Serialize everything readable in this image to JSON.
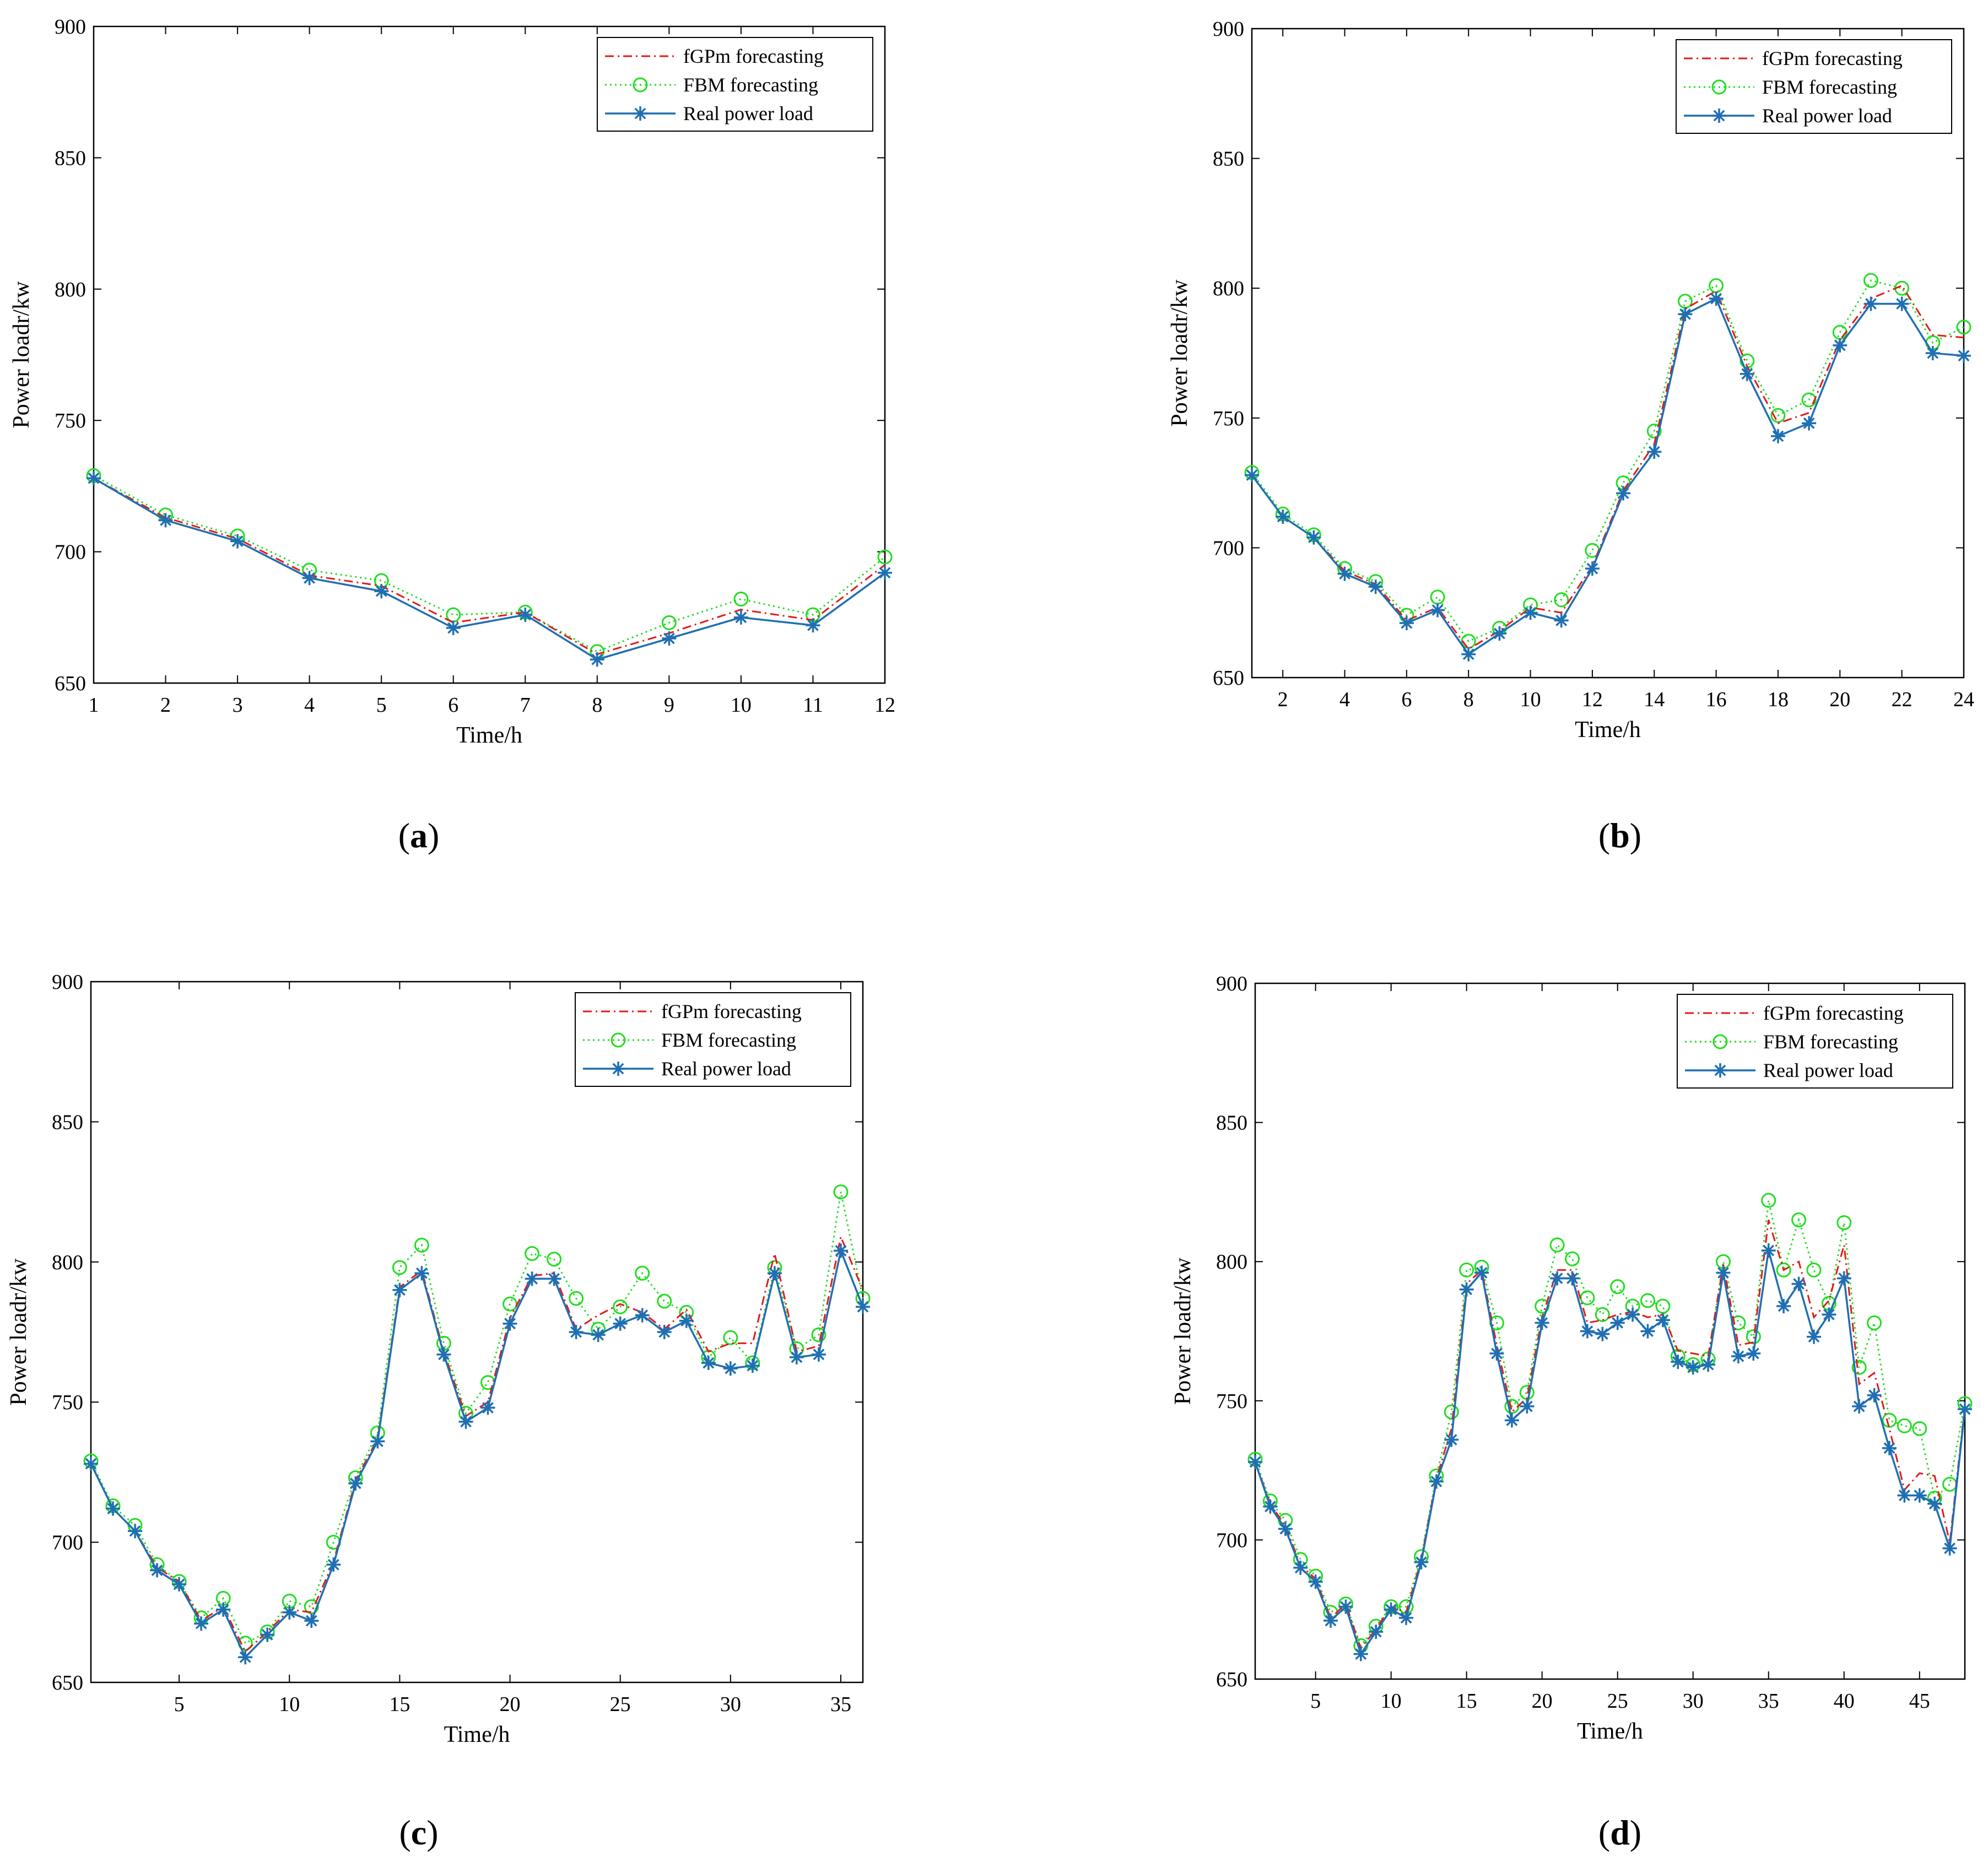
{
  "series_styles": {
    "fgpm": {
      "color": "#e31a1c",
      "marker": "none",
      "dash": "dash-dot"
    },
    "fbm": {
      "color": "#22dd22",
      "marker": "circle",
      "dash": "dotted"
    },
    "real": {
      "color": "#1f6fb2",
      "marker": "star",
      "dash": "solid"
    }
  },
  "chart_data": [
    {
      "panel_label": "a",
      "type": "line",
      "xlabel": "Time/h",
      "ylabel": "Power loadr/kw",
      "xlim": [
        1,
        12
      ],
      "ylim": [
        650,
        900
      ],
      "xticks": [
        1,
        2,
        3,
        4,
        5,
        6,
        7,
        8,
        9,
        10,
        11,
        12
      ],
      "yticks": [
        650,
        700,
        750,
        800,
        850,
        900
      ],
      "legend_position": "top-right",
      "x": [
        1,
        2,
        3,
        4,
        5,
        6,
        7,
        8,
        9,
        10,
        11,
        12
      ],
      "series": [
        {
          "key": "fgpm",
          "name": "fGPm forecasting",
          "values": [
            728,
            713,
            705,
            691,
            687,
            673,
            677,
            661,
            669,
            678,
            674,
            695
          ]
        },
        {
          "key": "fbm",
          "name": "FBM forecasting",
          "values": [
            729,
            714,
            706,
            693,
            689,
            676,
            677,
            662,
            673,
            682,
            676,
            698
          ]
        },
        {
          "key": "real",
          "name": "Real power load",
          "values": [
            728,
            712,
            704,
            690,
            685,
            671,
            676,
            659,
            667,
            675,
            672,
            692
          ]
        }
      ]
    },
    {
      "panel_label": "b",
      "type": "line",
      "xlabel": "Time/h",
      "ylabel": "Power loadr/kw",
      "xlim": [
        1,
        24
      ],
      "ylim": [
        650,
        900
      ],
      "xticks": [
        2,
        4,
        6,
        8,
        10,
        12,
        14,
        16,
        18,
        20,
        22,
        24
      ],
      "yticks": [
        650,
        700,
        750,
        800,
        850,
        900
      ],
      "legend_position": "top-right",
      "x": [
        1,
        2,
        3,
        4,
        5,
        6,
        7,
        8,
        9,
        10,
        11,
        12,
        13,
        14,
        15,
        16,
        17,
        18,
        19,
        20,
        21,
        22,
        23,
        24
      ],
      "series": [
        {
          "key": "fgpm",
          "name": "fGPm forecasting",
          "values": [
            728,
            712,
            704,
            691,
            686,
            672,
            677,
            661,
            668,
            677,
            675,
            693,
            722,
            740,
            792,
            799,
            770,
            748,
            752,
            780,
            796,
            801,
            782,
            781
          ]
        },
        {
          "key": "fbm",
          "name": "FBM forecasting",
          "values": [
            729,
            713,
            705,
            692,
            687,
            674,
            681,
            664,
            669,
            678,
            680,
            699,
            725,
            745,
            795,
            801,
            772,
            751,
            757,
            783,
            803,
            800,
            779,
            785
          ]
        },
        {
          "key": "real",
          "name": "Real power load",
          "values": [
            728,
            712,
            704,
            690,
            685,
            671,
            676,
            659,
            667,
            675,
            672,
            692,
            721,
            737,
            790,
            796,
            767,
            743,
            748,
            778,
            794,
            794,
            775,
            774
          ]
        }
      ]
    },
    {
      "panel_label": "c",
      "type": "line",
      "xlabel": "Time/h",
      "ylabel": "Power loadr/kw",
      "xlim": [
        1,
        36
      ],
      "ylim": [
        650,
        900
      ],
      "xticks": [
        5,
        10,
        15,
        20,
        25,
        30,
        35
      ],
      "yticks": [
        650,
        700,
        750,
        800,
        850,
        900
      ],
      "legend_position": "top-right",
      "x": [
        1,
        2,
        3,
        4,
        5,
        6,
        7,
        8,
        9,
        10,
        11,
        12,
        13,
        14,
        15,
        16,
        17,
        18,
        19,
        20,
        21,
        22,
        23,
        24,
        25,
        26,
        27,
        28,
        29,
        30,
        31,
        32,
        33,
        34,
        35,
        36
      ],
      "series": [
        {
          "key": "fgpm",
          "name": "fGPm forecasting",
          "values": [
            728,
            712,
            704,
            691,
            686,
            672,
            677,
            661,
            668,
            676,
            675,
            693,
            722,
            737,
            791,
            797,
            768,
            745,
            750,
            780,
            795,
            796,
            776,
            781,
            785,
            782,
            776,
            783,
            768,
            771,
            771,
            803,
            768,
            770,
            809,
            790
          ]
        },
        {
          "key": "fbm",
          "name": "FBM forecasting",
          "values": [
            729,
            713,
            706,
            692,
            686,
            673,
            680,
            664,
            668,
            679,
            677,
            700,
            723,
            739,
            798,
            806,
            771,
            746,
            757,
            785,
            803,
            801,
            787,
            776,
            784,
            796,
            786,
            782,
            766,
            773,
            764,
            798,
            769,
            774,
            825,
            787
          ]
        },
        {
          "key": "real",
          "name": "Real power load",
          "values": [
            728,
            712,
            704,
            690,
            685,
            671,
            676,
            659,
            667,
            675,
            672,
            692,
            721,
            736,
            790,
            796,
            767,
            743,
            748,
            778,
            794,
            794,
            775,
            774,
            778,
            781,
            775,
            779,
            764,
            762,
            763,
            796,
            766,
            767,
            804,
            784
          ]
        }
      ]
    },
    {
      "panel_label": "d",
      "type": "line",
      "xlabel": "Time/h",
      "ylabel": "Power loadr/kw",
      "xlim": [
        1,
        48
      ],
      "ylim": [
        650,
        900
      ],
      "xticks": [
        5,
        10,
        15,
        20,
        25,
        30,
        35,
        40,
        45
      ],
      "yticks": [
        650,
        700,
        750,
        800,
        850,
        900
      ],
      "legend_position": "top-right",
      "x": [
        1,
        2,
        3,
        4,
        5,
        6,
        7,
        8,
        9,
        10,
        11,
        12,
        13,
        14,
        15,
        16,
        17,
        18,
        19,
        20,
        21,
        22,
        23,
        24,
        25,
        26,
        27,
        28,
        29,
        30,
        31,
        32,
        33,
        34,
        35,
        36,
        37,
        38,
        39,
        40,
        41,
        42,
        43,
        44,
        45,
        46,
        47,
        48
      ],
      "series": [
        {
          "key": "fgpm",
          "name": "fGPm forecasting",
          "values": [
            728,
            713,
            705,
            691,
            686,
            672,
            677,
            661,
            668,
            676,
            674,
            693,
            722,
            740,
            792,
            797,
            770,
            746,
            751,
            780,
            797,
            797,
            778,
            779,
            781,
            782,
            780,
            781,
            768,
            767,
            766,
            799,
            770,
            771,
            815,
            797,
            800,
            780,
            786,
            806,
            756,
            760,
            740,
            718,
            724,
            723,
            699,
            748
          ]
        },
        {
          "key": "fbm",
          "name": "FBM forecasting",
          "values": [
            729,
            714,
            707,
            693,
            687,
            674,
            677,
            662,
            669,
            676,
            676,
            694,
            723,
            746,
            797,
            798,
            778,
            748,
            753,
            784,
            806,
            801,
            787,
            781,
            791,
            784,
            786,
            784,
            766,
            763,
            765,
            800,
            778,
            773,
            822,
            797,
            815,
            797,
            785,
            814,
            762,
            778,
            743,
            741,
            740,
            715,
            720,
            749
          ]
        },
        {
          "key": "real",
          "name": "Real power load",
          "values": [
            728,
            712,
            704,
            690,
            685,
            671,
            676,
            659,
            667,
            675,
            672,
            692,
            721,
            736,
            790,
            796,
            767,
            743,
            748,
            778,
            794,
            794,
            775,
            774,
            778,
            781,
            775,
            779,
            764,
            762,
            763,
            796,
            766,
            767,
            804,
            784,
            792,
            773,
            781,
            794,
            748,
            752,
            733,
            716,
            716,
            713,
            697,
            747
          ]
        }
      ]
    }
  ]
}
